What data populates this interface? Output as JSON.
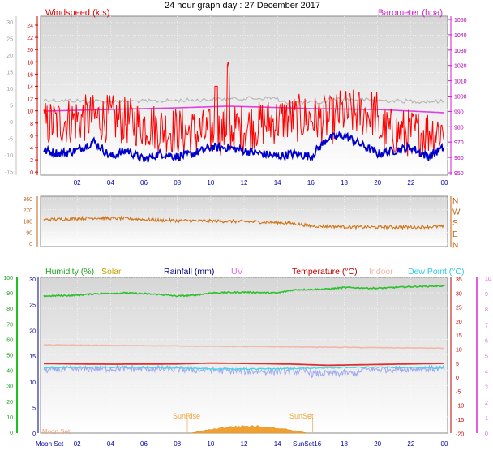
{
  "title": "24 hour graph day : 27 December 2017",
  "x_ticks": [
    "02",
    "04",
    "06",
    "08",
    "10",
    "12",
    "14",
    "16",
    "18",
    "20",
    "22",
    "00"
  ],
  "colors": {
    "windspeed": "#ff0000",
    "gust": "#ff0000",
    "winddir": "#d07820",
    "barometer": "#e040e0",
    "temperature_out": "#0000cc",
    "temperature_in": "#c0c0c0",
    "humidity": "#30c030",
    "solar": "#f0a030",
    "rain": "#000080",
    "uv": "#e060e0",
    "temperature": "#e03030",
    "indoor": "#f0b8a8",
    "dewpoint": "#40d8e8",
    "chill": "#a0a8f0",
    "bg_grad_top": "#d8d8d8",
    "bg_grad_bottom": "#ffffff"
  },
  "panel1": {
    "left_label": "Windspeed (kts)",
    "right_label": "Barometer (hpa)",
    "left_outer_ticks": [
      "30",
      "25",
      "20",
      "15",
      "10",
      "5",
      "0",
      "-5",
      "-10",
      "-15"
    ],
    "left_inner_ticks": [
      "24",
      "22",
      "20",
      "18",
      "16",
      "14",
      "12",
      "10",
      "8",
      "6",
      "4",
      "2",
      "0"
    ],
    "right_ticks": [
      "1050",
      "1040",
      "1030",
      "1020",
      "1010",
      "1000",
      "990",
      "980",
      "970",
      "960",
      "950"
    ]
  },
  "panel2": {
    "left_ticks": [
      "360",
      "270",
      "180",
      "90",
      "0"
    ],
    "right_labels": [
      "N",
      "W",
      "S",
      "E",
      "N"
    ]
  },
  "panel3": {
    "legend": [
      {
        "text": "Humidity (%)",
        "key": "humidity"
      },
      {
        "text": "Solar",
        "key": "solar"
      },
      {
        "text": "Rainfall (mm)",
        "key": "rain"
      },
      {
        "text": "UV",
        "key": "uv"
      },
      {
        "text": "Temperature (°C)",
        "key": "temperature"
      },
      {
        "text": "Indoor",
        "key": "indoor"
      },
      {
        "text": "Dew Point (°C)",
        "key": "dewpoint"
      }
    ],
    "humidity_ticks": [
      "100",
      "90",
      "80",
      "70",
      "60",
      "50",
      "40",
      "30",
      "20",
      "10",
      "0"
    ],
    "rain_ticks": [
      "30",
      "25",
      "20",
      "15",
      "10",
      "5",
      "0"
    ],
    "uv_ticks": [
      "10",
      "9",
      "8",
      "7",
      "6",
      "5",
      "4",
      "3",
      "2",
      "1",
      "0"
    ],
    "temp_ticks": [
      "35",
      "30",
      "25",
      "20",
      "15",
      "10",
      "5",
      "0",
      "-5",
      "-10",
      "-15",
      "-20"
    ],
    "annotations": {
      "sunrise": "SunRise",
      "sunset": "SunSet",
      "moonset": "Moon Set",
      "sunset_axis": "SunSet16",
      "moonset_faint": "Moon Set"
    }
  },
  "chart_data": [
    {
      "type": "line",
      "title": "24 hour graph day : 27 December 2017",
      "ylabel": "Windspeed (kts)",
      "y2label": "Barometer (hpa)",
      "ylim": [
        0,
        24
      ],
      "y2lim": [
        950,
        1050
      ],
      "series": [
        {
          "name": "Windspeed (kts)",
          "x": [
            1,
            2,
            3,
            4,
            5,
            6,
            7,
            8,
            9,
            10,
            11,
            12,
            13,
            14,
            15,
            16,
            17,
            18,
            19,
            20,
            21,
            22,
            23,
            24
          ],
          "values": [
            4,
            3,
            4,
            5,
            3,
            3,
            3,
            4,
            3,
            4,
            5,
            5,
            4,
            3,
            3,
            3,
            4,
            7,
            5,
            4,
            4,
            5,
            3,
            4
          ]
        },
        {
          "name": "Barometer (hpa)",
          "x": [
            1,
            4,
            8,
            12,
            16,
            20,
            24
          ],
          "values": [
            986,
            987,
            989,
            991,
            990,
            990,
            988
          ]
        }
      ]
    },
    {
      "type": "scatter",
      "ylim": [
        0,
        360
      ],
      "series": [
        {
          "x": [
            1,
            4,
            7,
            10,
            13,
            16,
            19,
            22,
            24
          ],
          "values": [
            190,
            210,
            185,
            180,
            170,
            150,
            135,
            130,
            135
          ]
        }
      ]
    },
    {
      "type": "line",
      "ylabel": "Humidity (%)",
      "ylim": [
        0,
        100
      ],
      "y2label": "Temperature (°C)",
      "y2lim": [
        -20,
        35
      ],
      "series": [
        {
          "name": "Humidity (%)",
          "x": [
            1,
            4,
            8,
            12,
            16,
            20,
            24
          ],
          "values": [
            88,
            89,
            89,
            90,
            92,
            93,
            94
          ]
        },
        {
          "name": "Temperature (°C)",
          "x": [
            1,
            6,
            12,
            18,
            24
          ],
          "values": [
            4.7,
            4.5,
            5.0,
            4.3,
            4.8
          ]
        },
        {
          "name": "Indoor",
          "x": [
            1,
            6,
            12,
            18,
            24
          ],
          "values": [
            11.5,
            11.0,
            11.0,
            10.5,
            10.5
          ]
        },
        {
          "name": "Dew Point (°C)",
          "x": [
            1,
            6,
            12,
            18,
            24
          ],
          "values": [
            3.2,
            2.8,
            3.5,
            3.0,
            3.3
          ]
        },
        {
          "name": "Solar",
          "x": [
            9,
            10,
            11,
            12,
            13,
            14,
            15
          ],
          "values": [
            0,
            5,
            20,
            40,
            30,
            15,
            0
          ]
        }
      ]
    }
  ]
}
